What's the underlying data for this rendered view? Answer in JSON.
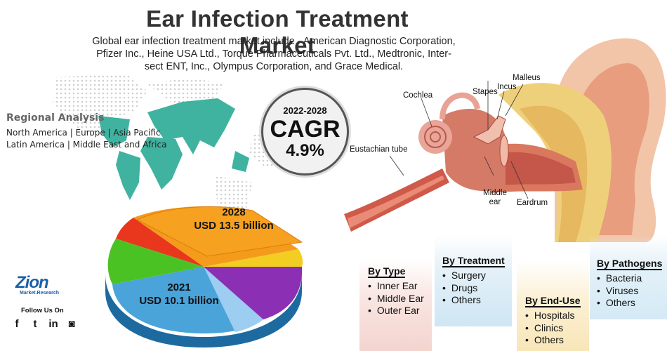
{
  "header": {
    "title": "Ear Infection Treatment Market",
    "subtitle_lines": [
      "Global ear infection treatment market include - American Diagnostic Corporation,",
      "Pfizer Inc., Heine USA Ltd., Torque Pharmaceuticals Pvt. Ltd., Medtronic, Inter-",
      "sect ENT, Inc., Olympus Corporation, and Grace Medical."
    ]
  },
  "regional": {
    "heading": "Regional Analysis",
    "line1": "North America | Europe | Asia Pacific",
    "line2": "Latin America | Middle East and Africa"
  },
  "cagr": {
    "years": "2022-2028",
    "label": "CAGR",
    "value": "4.9%"
  },
  "ear_labels": {
    "cochlea": "Cochlea",
    "stapes": "Stapes",
    "incus": "Incus",
    "malleus": "Malleus",
    "eustachian": "Eustachian tube",
    "middle_ear_1": "Middle",
    "middle_ear_2": "ear",
    "eardrum": "Eardrum"
  },
  "market": {
    "y2028": {
      "year": "2028",
      "value": "USD 13.5 billion"
    },
    "y2021": {
      "year": "2021",
      "value": "USD 10.1 billion"
    }
  },
  "brand": {
    "logo": "Zion",
    "logo_sub": "Market.Research",
    "follow": "Follow Us On",
    "social": [
      {
        "icon": "facebook-icon",
        "glyph": "f"
      },
      {
        "icon": "twitter-icon",
        "glyph": "t"
      },
      {
        "icon": "linkedin-icon",
        "glyph": "in"
      },
      {
        "icon": "instagram-icon",
        "glyph": "◙"
      }
    ]
  },
  "segments": {
    "by_type": {
      "title": "By Type",
      "items": [
        "Inner Ear",
        "Middle Ear",
        "Outer Ear"
      ]
    },
    "by_treatment": {
      "title": "By Treatment",
      "items": [
        "Surgery",
        "Drugs",
        "Others"
      ]
    },
    "by_end_use": {
      "title": "By End-Use",
      "items": [
        "Hospitals",
        "Clinics",
        "Others"
      ]
    },
    "by_pathogens": {
      "title": "By Pathogens",
      "items": [
        "Bacteria",
        "Viruses",
        "Others"
      ]
    }
  },
  "colors": {
    "teal": "#3fb3a0",
    "logo_blue": "#1c5fa8"
  }
}
